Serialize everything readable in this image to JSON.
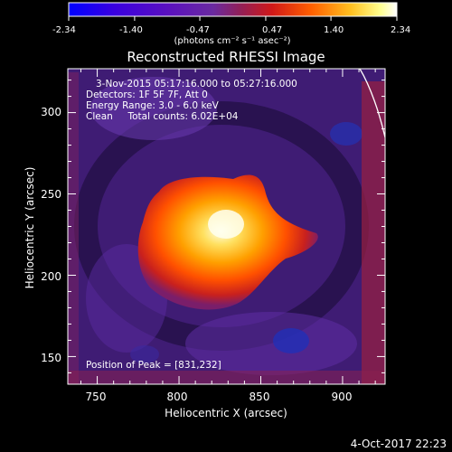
{
  "colorbar": {
    "tick_labels": [
      "-2.34",
      "-1.40",
      "-0.47",
      "0.47",
      "1.40",
      "2.34"
    ],
    "unit_label": "(photons cm⁻² s⁻¹ asec⁻²)",
    "range": [
      -2.34,
      2.34
    ],
    "colormap": [
      "#0000ff",
      "#4b00d0",
      "#6f2fb0",
      "#b02050",
      "#ff4000",
      "#ffa000",
      "#ffff80",
      "#ffffff"
    ]
  },
  "image": {
    "title": "Reconstructed RHESSI Image",
    "info": {
      "time_range": "3-Nov-2015 05:17:16.000 to 05:27:16.000",
      "detectors": "Detectors: 1F 5F 7F, Att 0",
      "energy": "Energy Range: 3.0 - 6.0 keV",
      "clean": "Clean     Total counts: 6.02E+04"
    },
    "peak_label": "Position of Peak = [831,232]",
    "xlabel": "Heliocentric X (arcsec)",
    "ylabel": "Heliocentric Y (arcsec)",
    "x_ticks": [
      "750",
      "800",
      "850",
      "900"
    ],
    "y_ticks": [
      "150",
      "200",
      "250",
      "300"
    ],
    "x_range": [
      732,
      926
    ],
    "y_range": [
      133,
      327
    ],
    "limb_line": true,
    "background_color": "#3a1a6e"
  },
  "footer": {
    "date_stamp": "4-Oct-2017 22:23"
  }
}
